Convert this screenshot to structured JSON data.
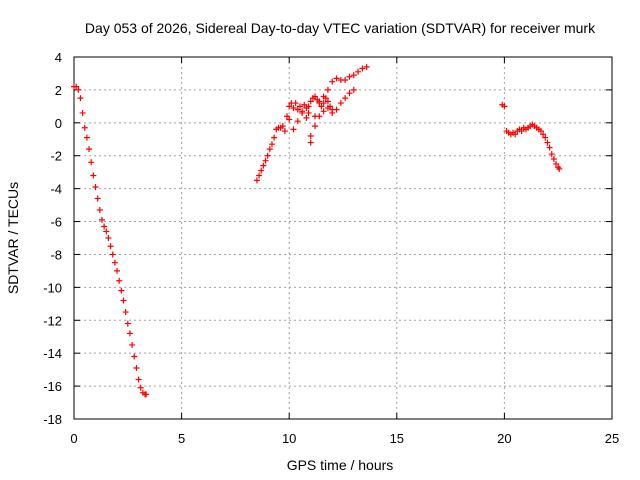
{
  "chart_data": {
    "type": "scatter",
    "title": "Day 053 of 2026, Sidereal Day-to-day VTEC variation (SDTVAR) for receiver murk",
    "xlabel": "GPS time / hours",
    "ylabel": "SDTVAR / TECUs",
    "xlim": [
      0,
      25
    ],
    "ylim": [
      -18,
      4
    ],
    "xticks": [
      0,
      5,
      10,
      15,
      20,
      25
    ],
    "yticks": [
      -18,
      -16,
      -14,
      -12,
      -10,
      -8,
      -6,
      -4,
      -2,
      0,
      2,
      4
    ],
    "grid": true,
    "legend": "none",
    "marker": "plus",
    "color": "#ff0000",
    "series": [
      {
        "x": [
          0.0,
          0.1,
          0.2,
          0.3,
          0.4,
          0.5,
          0.6,
          0.7,
          0.8,
          0.9,
          1.0,
          1.1,
          1.2,
          1.3,
          1.4,
          1.5,
          1.6,
          1.7,
          1.8,
          1.9,
          2.0,
          2.1,
          2.2,
          2.3,
          2.4,
          2.5,
          2.6,
          2.7,
          2.8,
          2.9,
          3.0,
          3.1,
          3.2,
          3.3,
          3.35
        ],
        "y": [
          2.2,
          2.2,
          2.0,
          1.5,
          0.6,
          -0.3,
          -0.9,
          -1.6,
          -2.4,
          -3.2,
          -3.9,
          -4.6,
          -5.3,
          -5.9,
          -6.3,
          -6.6,
          -7.0,
          -7.5,
          -8.0,
          -8.5,
          -9.0,
          -9.6,
          -10.2,
          -10.8,
          -11.5,
          -12.2,
          -12.8,
          -13.5,
          -14.2,
          -14.9,
          -15.6,
          -16.1,
          -16.4,
          -16.5,
          -16.5
        ]
      },
      {
        "x": [
          8.5,
          8.6,
          8.7,
          8.8,
          8.9,
          9.0,
          9.1,
          9.2,
          9.3,
          9.4,
          9.5,
          9.6,
          9.7,
          9.8,
          9.9,
          10.0,
          10.1,
          10.2,
          10.3,
          10.4,
          10.5,
          10.6,
          10.7,
          10.8,
          10.9,
          11.0,
          11.2,
          11.4,
          11.6,
          11.8,
          12.0,
          12.2,
          12.4,
          12.6,
          12.8,
          13.0,
          13.2,
          13.4,
          13.6
        ],
        "y": [
          -3.5,
          -3.2,
          -2.9,
          -2.6,
          -2.3,
          -2.0,
          -1.6,
          -1.3,
          -0.9,
          -0.4,
          -0.3,
          -0.3,
          -0.2,
          -0.5,
          0.4,
          1.0,
          1.2,
          0.9,
          1.2,
          0.8,
          1.0,
          0.7,
          1.1,
          0.9,
          0.6,
          -1.2,
          0.4,
          1.3,
          1.6,
          2.0,
          2.5,
          2.7,
          2.6,
          2.6,
          2.8,
          2.9,
          3.1,
          3.3,
          3.4
        ]
      },
      {
        "x": [
          10.0,
          10.2,
          10.4,
          10.6,
          10.8,
          11.0,
          11.2,
          11.4,
          11.6,
          11.8,
          12.0,
          12.2,
          12.4,
          12.6,
          12.8,
          13.0
        ],
        "y": [
          0.2,
          -0.4,
          0.1,
          0.6,
          0.3,
          -0.8,
          -0.2,
          0.4,
          0.7,
          0.9,
          0.6,
          0.8,
          1.2,
          1.5,
          1.8,
          2.0
        ]
      },
      {
        "x": [
          10.9,
          11.0,
          11.1,
          11.2,
          11.3,
          11.4,
          11.5,
          11.6,
          11.7,
          11.8,
          11.9,
          12.0
        ],
        "y": [
          1.0,
          1.3,
          1.5,
          1.6,
          1.4,
          1.2,
          1.0,
          1.2,
          1.5,
          1.3,
          1.0,
          0.8
        ]
      },
      {
        "x": [
          19.9,
          20.0,
          20.1,
          20.2,
          20.3,
          20.4,
          20.5,
          20.6,
          20.7,
          20.8,
          20.9,
          21.0,
          21.1,
          21.2,
          21.3,
          21.4,
          21.5,
          21.6,
          21.7,
          21.8,
          21.9,
          22.0,
          22.1,
          22.2,
          22.3,
          22.4,
          22.5,
          22.55
        ],
        "y": [
          1.1,
          1.0,
          -0.5,
          -0.6,
          -0.7,
          -0.6,
          -0.7,
          -0.5,
          -0.4,
          -0.5,
          -0.3,
          -0.4,
          -0.3,
          -0.2,
          -0.1,
          -0.2,
          -0.3,
          -0.4,
          -0.5,
          -0.7,
          -0.9,
          -1.2,
          -1.5,
          -1.9,
          -2.2,
          -2.5,
          -2.7,
          -2.8
        ]
      }
    ]
  }
}
